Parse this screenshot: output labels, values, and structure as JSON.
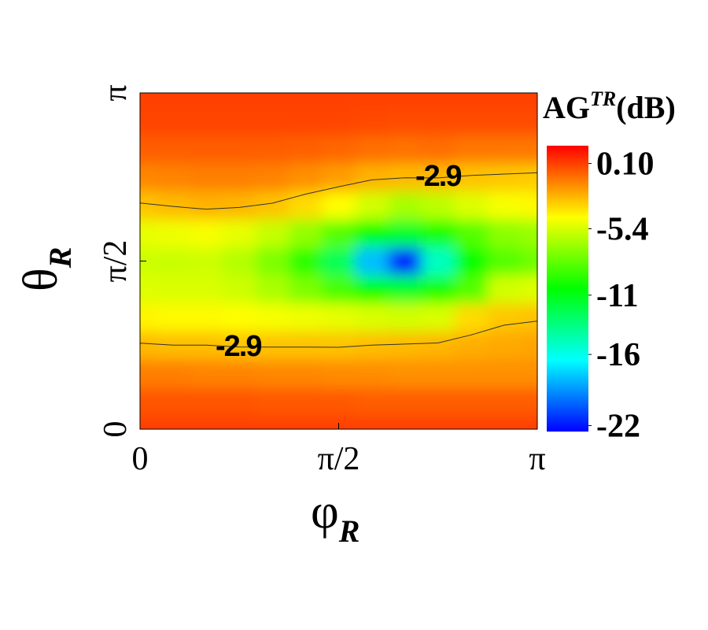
{
  "chart_data": {
    "type": "contour",
    "x_label": {
      "symbol": "φ",
      "sub": "R"
    },
    "y_label": {
      "symbol": "θ",
      "sub": "R"
    },
    "colorbar_label": {
      "base": "AG",
      "sup": "TR",
      "unit": "(dB)"
    },
    "x": [
      0,
      0.2618,
      0.5236,
      0.7854,
      1.0472,
      1.309,
      1.5708,
      1.8326,
      2.0944,
      2.3562,
      2.618,
      2.8798,
      3.1416
    ],
    "y": [
      0,
      0.2618,
      0.5236,
      0.7854,
      1.0472,
      1.309,
      1.5708,
      1.8326,
      2.0944,
      2.3562,
      2.618,
      2.8798,
      3.1416
    ],
    "z": [
      [
        0.1,
        0.1,
        0.1,
        0.1,
        0.1,
        0.1,
        0.1,
        0.1,
        0.1,
        0.1,
        0.1,
        0.1,
        0.1
      ],
      [
        -0.4,
        -0.4,
        -0.4,
        -0.4,
        -0.5,
        -0.5,
        -0.5,
        -0.6,
        -0.6,
        -0.6,
        -0.6,
        -0.6,
        -0.6
      ],
      [
        -1.4,
        -1.4,
        -1.5,
        -1.5,
        -1.6,
        -1.6,
        -1.7,
        -1.7,
        -1.8,
        -1.8,
        -1.8,
        -1.8,
        -1.8
      ],
      [
        -2.8,
        -2.9,
        -2.9,
        -3.0,
        -3.0,
        -3.0,
        -3.0,
        -2.9,
        -2.8,
        -2.7,
        -2.5,
        -2.4,
        -2.3
      ],
      [
        -4.2,
        -4.3,
        -4.3,
        -4.4,
        -4.6,
        -4.8,
        -5.0,
        -5.3,
        -5.5,
        -5.3,
        -3.6,
        -3.1,
        -3.0
      ],
      [
        -5.2,
        -5.3,
        -5.3,
        -5.6,
        -6.4,
        -7.5,
        -8.8,
        -10.5,
        -11.5,
        -10,
        -8.5,
        -5.5,
        -5.2
      ],
      [
        -5.6,
        -5.7,
        -5.6,
        -6.2,
        -7.5,
        -9.5,
        -12.5,
        -18,
        -22,
        -15,
        -10.5,
        -8.5,
        -7.8
      ],
      [
        -5.0,
        -4.8,
        -4.6,
        -5.0,
        -5.8,
        -7.0,
        -8.5,
        -10.5,
        -11.5,
        -10,
        -8.5,
        -7.2,
        -6.8
      ],
      [
        -3.0,
        -2.8,
        -2.6,
        -2.7,
        -3.0,
        -3.6,
        -4.4,
        -5.5,
        -6.5,
        -6.0,
        -5.2,
        -4.6,
        -4.3
      ],
      [
        -1.6,
        -1.5,
        -1.4,
        -1.4,
        -1.5,
        -1.8,
        -2.1,
        -2.6,
        -2.8,
        -2.8,
        -3.0,
        -3.1,
        -3.2
      ],
      [
        -0.6,
        -0.6,
        -0.6,
        -0.6,
        -0.6,
        -0.7,
        -0.8,
        -1.0,
        -1.1,
        -1.0,
        -1.2,
        -1.2,
        -1.2
      ],
      [
        0,
        0,
        0,
        0,
        0,
        0,
        0,
        -0.1,
        -0.2,
        -0.2,
        -0.2,
        -0.2,
        -0.2
      ],
      [
        0.1,
        0.1,
        0.1,
        0.1,
        0.1,
        0.1,
        0.1,
        0.1,
        0.1,
        0.1,
        0.1,
        0.1,
        0.1
      ]
    ],
    "xlim": [
      0,
      3.1416
    ],
    "ylim": [
      0,
      3.1416
    ],
    "xticks": [
      0,
      {
        "value": 1.5708,
        "label": "π/2"
      },
      {
        "value": 3.1416,
        "label": "π"
      }
    ],
    "yticks": [
      0,
      {
        "value": 1.5708,
        "label": "π/2"
      },
      {
        "value": 3.1416,
        "label": "π"
      }
    ],
    "zlim": [
      -22.5,
      1.6
    ],
    "zticks": [
      {
        "value": 0.1,
        "label": "0.10"
      },
      -5.4,
      -11,
      -16,
      -22
    ],
    "colormap": [
      "#0000ff",
      "#00ffff",
      "#00ff00",
      "#ffff00",
      "#ff0000"
    ],
    "contour_levels": [
      -2.9
    ],
    "contour_color": "#333333"
  }
}
